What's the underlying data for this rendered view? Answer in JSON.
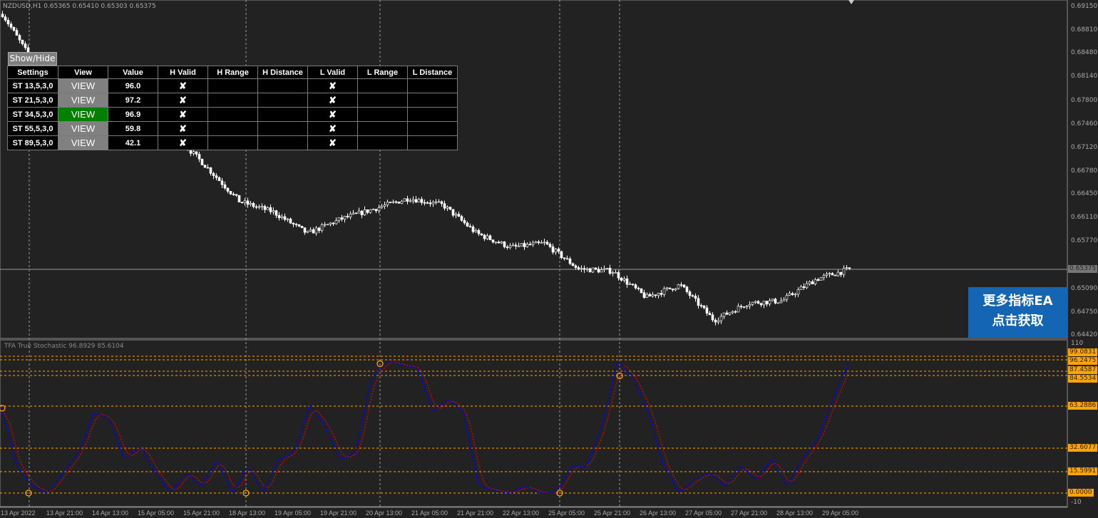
{
  "chart": {
    "symbol_line": "NZDUSD,H1  0.65365 0.65410 0.65303 0.65375",
    "indicator_title": "TFA True Stochastic 96.8929 85.6104",
    "current_price": "0.65375",
    "price_axis": [
      "0.69150",
      "0.68810",
      "0.68480",
      "0.68140",
      "0.67800",
      "0.67460",
      "0.67120",
      "0.66780",
      "0.66450",
      "0.66110",
      "0.65770",
      "0.65090",
      "0.64750",
      "0.64420"
    ],
    "indicator_axis": {
      "max": "110",
      "min": "-10"
    },
    "levels": [
      "99.0831",
      "96.2475",
      "87.4587",
      "84.5534",
      "63.2886",
      "32.6077",
      "15.5991",
      "0.0000"
    ],
    "time_axis": [
      "13 Apr 2022",
      "13 Apr 21:00",
      "14 Apr 13:00",
      "15 Apr 05:00",
      "15 Apr 21:00",
      "18 Apr 13:00",
      "19 Apr 05:00",
      "19 Apr 21:00",
      "20 Apr 13:00",
      "21 Apr 05:00",
      "21 Apr 21:00",
      "22 Apr 13:00",
      "25 Apr 05:00",
      "25 Apr 21:00",
      "26 Apr 13:00",
      "27 Apr 05:00",
      "27 Apr 21:00",
      "28 Apr 13:00",
      "29 Apr 05:00"
    ],
    "price_path": [
      0.6905,
      0.6828,
      0.68,
      0.678,
      0.676,
      0.6735,
      0.6686,
      0.6635,
      0.662,
      0.6589,
      0.661,
      0.6625,
      0.664,
      0.663,
      0.6589,
      0.6569,
      0.6575,
      0.6538,
      0.6535,
      0.6497,
      0.6515,
      0.6464,
      0.6489,
      0.6492,
      0.6523,
      0.65375
    ],
    "stoch_path": [
      63,
      20,
      5,
      0,
      15,
      30,
      60,
      55,
      25,
      35,
      15,
      0,
      15,
      5,
      25,
      0,
      20,
      0,
      25,
      30,
      65,
      50,
      25,
      30,
      85,
      98,
      95,
      93,
      60,
      70,
      60,
      5,
      2,
      0,
      5,
      0,
      0,
      20,
      20,
      50,
      98,
      85,
      60,
      20,
      0,
      10,
      15,
      5,
      20,
      10,
      25,
      5,
      25,
      40,
      70,
      97
    ],
    "colors": {
      "main": "#0000ff",
      "signal": "#ff0000",
      "level": "#ffa500",
      "bull": "#ffffff",
      "bear": "#ffffff"
    }
  },
  "panel": {
    "show_hide": "Show/Hide",
    "headers": [
      "Settings",
      "View",
      "Value",
      "H Valid",
      "H Range",
      "H Distance",
      "L Valid",
      "L Range",
      "L Distance"
    ],
    "rows": [
      {
        "setting": "ST 13,5,3,0",
        "view": "VIEW",
        "value": "96.0",
        "h_valid": "✘",
        "l_valid": "✘",
        "active": false
      },
      {
        "setting": "ST 21,5,3,0",
        "view": "VIEW",
        "value": "97.2",
        "h_valid": "✘",
        "l_valid": "✘",
        "active": false
      },
      {
        "setting": "ST 34,5,3,0",
        "view": "VIEW",
        "value": "96.9",
        "h_valid": "✘",
        "l_valid": "✘",
        "active": true
      },
      {
        "setting": "ST 55,5,3,0",
        "view": "VIEW",
        "value": "59.8",
        "h_valid": "✘",
        "l_valid": "✘",
        "active": false
      },
      {
        "setting": "ST 89,5,3,0",
        "view": "VIEW",
        "value": "42.1",
        "h_valid": "✘",
        "l_valid": "✘",
        "active": false
      }
    ]
  },
  "ad": {
    "line1": "更多指标EA",
    "line2": "点击获取"
  }
}
